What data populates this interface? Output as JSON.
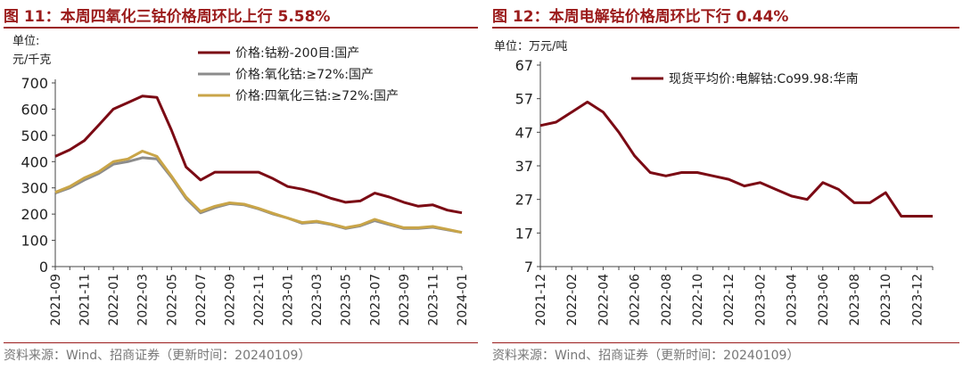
{
  "chart_data": [
    {
      "type": "line",
      "title": "图 11：本周四氧化三钴价格周环比上行 5.58%",
      "unit_label": [
        "单位:",
        "元/千克"
      ],
      "source": "资料来源：Wind、招商证券（更新时间：20240109）",
      "ylim": [
        0,
        700
      ],
      "yticks": [
        0,
        100,
        200,
        300,
        400,
        500,
        600,
        700
      ],
      "xlim": [
        "2021-09",
        "2024-01"
      ],
      "xticks": [
        "2021-09",
        "2021-11",
        "2022-01",
        "2022-03",
        "2022-05",
        "2022-07",
        "2022-09",
        "2022-11",
        "2023-01",
        "2023-03",
        "2023-05",
        "2023-07",
        "2023-09",
        "2023-11",
        "2024-01"
      ],
      "legend_position": "top-right",
      "series": [
        {
          "name": "价格:钴粉-200目:国产",
          "color": "#7b0a14",
          "x": [
            "2021-09",
            "2021-10",
            "2021-11",
            "2021-12",
            "2022-01",
            "2022-02",
            "2022-03",
            "2022-04",
            "2022-05",
            "2022-06",
            "2022-07",
            "2022-08",
            "2022-09",
            "2022-10",
            "2022-11",
            "2022-12",
            "2023-01",
            "2023-02",
            "2023-03",
            "2023-04",
            "2023-05",
            "2023-06",
            "2023-07",
            "2023-08",
            "2023-09",
            "2023-10",
            "2023-11",
            "2023-12",
            "2024-01"
          ],
          "y": [
            420,
            445,
            480,
            540,
            600,
            625,
            650,
            645,
            520,
            380,
            330,
            360,
            360,
            360,
            360,
            335,
            305,
            295,
            280,
            260,
            245,
            250,
            280,
            265,
            245,
            230,
            235,
            215,
            205
          ]
        },
        {
          "name": "价格:氧化钴:≥72%:国产",
          "color": "#8c8c8c",
          "x": [
            "2021-09",
            "2021-10",
            "2021-11",
            "2021-12",
            "2022-01",
            "2022-02",
            "2022-03",
            "2022-04",
            "2022-05",
            "2022-06",
            "2022-07",
            "2022-08",
            "2022-09",
            "2022-10",
            "2022-11",
            "2022-12",
            "2023-01",
            "2023-02",
            "2023-03",
            "2023-04",
            "2023-05",
            "2023-06",
            "2023-07",
            "2023-08",
            "2023-09",
            "2023-10",
            "2023-11",
            "2023-12",
            "2024-01"
          ],
          "y": [
            280,
            300,
            330,
            355,
            390,
            400,
            415,
            410,
            340,
            260,
            205,
            225,
            240,
            235,
            220,
            200,
            185,
            165,
            170,
            160,
            145,
            155,
            175,
            160,
            145,
            145,
            150,
            140,
            130
          ]
        },
        {
          "name": "价格:四氧化三钴:≥72%:国产",
          "color": "#c9a548",
          "x": [
            "2021-09",
            "2021-10",
            "2021-11",
            "2021-12",
            "2022-01",
            "2022-02",
            "2022-03",
            "2022-04",
            "2022-05",
            "2022-06",
            "2022-07",
            "2022-08",
            "2022-09",
            "2022-10",
            "2022-11",
            "2022-12",
            "2023-01",
            "2023-02",
            "2023-03",
            "2023-04",
            "2023-05",
            "2023-06",
            "2023-07",
            "2023-08",
            "2023-09",
            "2023-10",
            "2023-11",
            "2023-12",
            "2024-01"
          ],
          "y": [
            283,
            305,
            338,
            362,
            400,
            410,
            440,
            420,
            345,
            265,
            210,
            230,
            243,
            238,
            222,
            203,
            185,
            168,
            173,
            162,
            148,
            158,
            180,
            163,
            148,
            148,
            153,
            142,
            130
          ]
        }
      ]
    },
    {
      "type": "line",
      "title": "图 12：本周电解钴价格周环比下行 0.44%",
      "unit_label": [
        "单位：万元/吨"
      ],
      "source": "资料来源：Wind、招商证券（更新时间：20240109）",
      "ylim": [
        7,
        67
      ],
      "yticks": [
        7,
        17,
        27,
        37,
        47,
        57,
        67
      ],
      "xlim": [
        "2021-12",
        "2024-01"
      ],
      "xticks": [
        "2021-12",
        "2022-02",
        "2022-04",
        "2022-06",
        "2022-08",
        "2022-10",
        "2022-12",
        "2023-02",
        "2023-04",
        "2023-06",
        "2023-08",
        "2023-10",
        "2023-12"
      ],
      "legend_position": "top",
      "series": [
        {
          "name": "现货平均价:电解钴:Co99.98:华南",
          "color": "#7b0a14",
          "x": [
            "2021-12",
            "2022-01",
            "2022-02",
            "2022-03",
            "2022-04",
            "2022-05",
            "2022-06",
            "2022-07",
            "2022-08",
            "2022-09",
            "2022-10",
            "2022-11",
            "2022-12",
            "2023-01",
            "2023-02",
            "2023-03",
            "2023-04",
            "2023-05",
            "2023-06",
            "2023-07",
            "2023-08",
            "2023-09",
            "2023-10",
            "2023-11",
            "2023-12",
            "2024-01"
          ],
          "y": [
            49,
            50,
            53,
            56,
            53,
            47,
            40,
            35,
            34,
            35,
            35,
            34,
            33,
            31,
            32,
            30,
            28,
            27,
            32,
            30,
            26,
            26,
            29,
            22,
            22,
            22
          ]
        }
      ]
    }
  ]
}
